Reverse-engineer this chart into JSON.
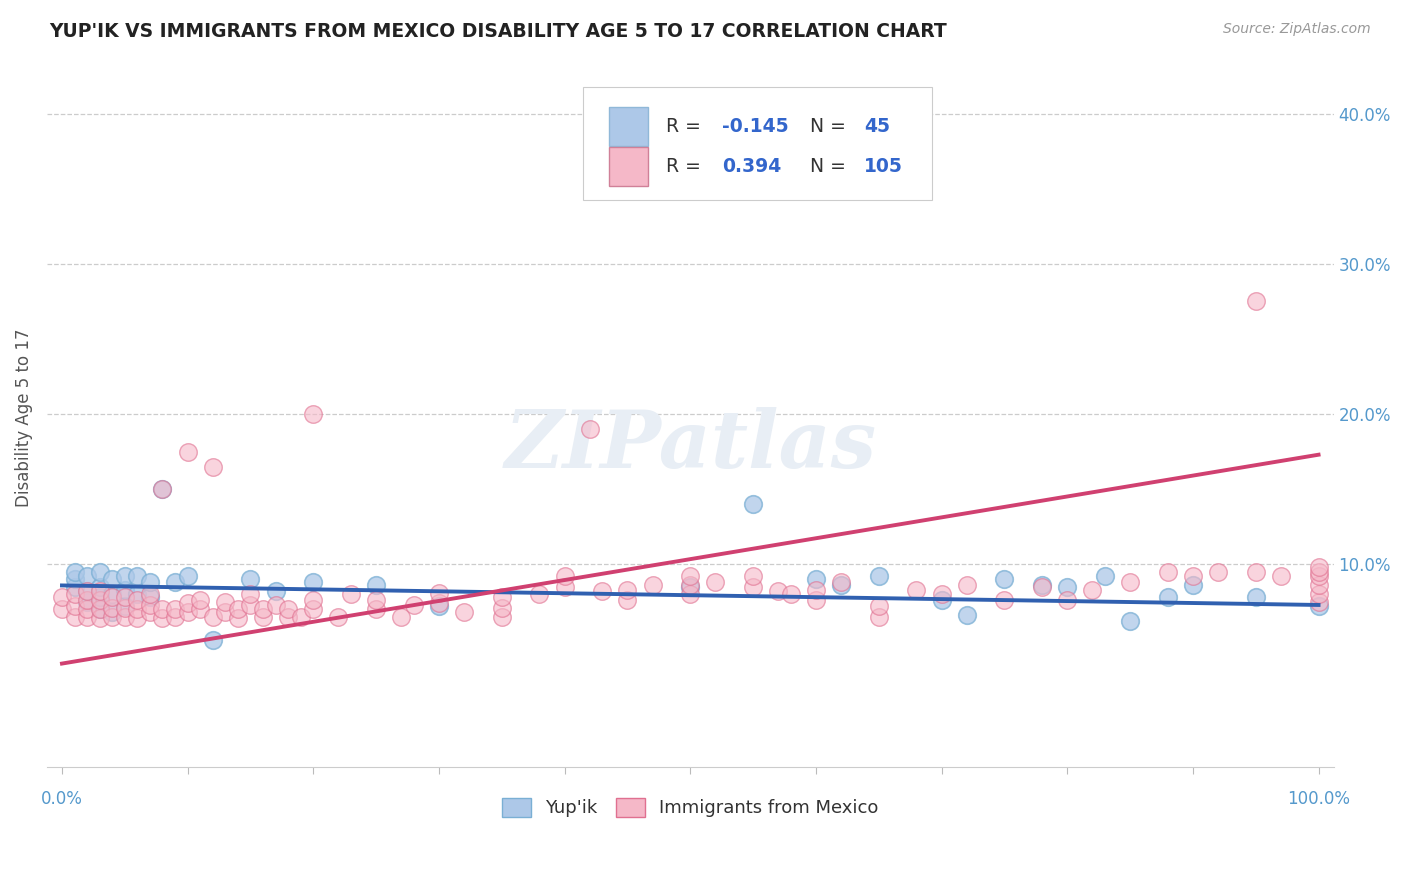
{
  "title": "YUP'IK VS IMMIGRANTS FROM MEXICO DISABILITY AGE 5 TO 17 CORRELATION CHART",
  "source": "Source: ZipAtlas.com",
  "ylabel": "Disability Age 5 to 17",
  "legend_blue_label": "Yup'ik",
  "legend_pink_label": "Immigrants from Mexico",
  "blue_R": -0.145,
  "blue_N": 45,
  "pink_R": 0.394,
  "pink_N": 105,
  "watermark": "ZIPatlas",
  "background_color": "#ffffff",
  "blue_scatter_color": "#adc8e8",
  "blue_scatter_edge": "#7aafd4",
  "blue_line_color": "#3060b0",
  "pink_scatter_color": "#f5b8c8",
  "pink_scatter_edge": "#e07090",
  "pink_line_color": "#d04070",
  "blue_points_x": [
    0.01,
    0.01,
    0.01,
    0.02,
    0.02,
    0.02,
    0.03,
    0.03,
    0.03,
    0.03,
    0.04,
    0.04,
    0.04,
    0.05,
    0.05,
    0.05,
    0.06,
    0.06,
    0.07,
    0.07,
    0.08,
    0.09,
    0.1,
    0.12,
    0.15,
    0.17,
    0.2,
    0.25,
    0.3,
    0.5,
    0.55,
    0.6,
    0.62,
    0.65,
    0.7,
    0.72,
    0.75,
    0.78,
    0.8,
    0.83,
    0.85,
    0.88,
    0.9,
    0.95,
    1.0
  ],
  "blue_points_y": [
    0.085,
    0.09,
    0.095,
    0.075,
    0.082,
    0.092,
    0.07,
    0.078,
    0.085,
    0.095,
    0.068,
    0.08,
    0.09,
    0.072,
    0.083,
    0.092,
    0.08,
    0.092,
    0.078,
    0.088,
    0.15,
    0.088,
    0.092,
    0.05,
    0.09,
    0.082,
    0.088,
    0.086,
    0.072,
    0.085,
    0.14,
    0.09,
    0.086,
    0.092,
    0.076,
    0.066,
    0.09,
    0.086,
    0.085,
    0.092,
    0.062,
    0.078,
    0.086,
    0.078,
    0.072
  ],
  "pink_points_x": [
    0.0,
    0.0,
    0.01,
    0.01,
    0.01,
    0.02,
    0.02,
    0.02,
    0.02,
    0.03,
    0.03,
    0.03,
    0.03,
    0.04,
    0.04,
    0.04,
    0.05,
    0.05,
    0.05,
    0.06,
    0.06,
    0.06,
    0.07,
    0.07,
    0.07,
    0.08,
    0.08,
    0.08,
    0.09,
    0.09,
    0.1,
    0.1,
    0.1,
    0.11,
    0.11,
    0.12,
    0.12,
    0.13,
    0.13,
    0.14,
    0.14,
    0.15,
    0.15,
    0.16,
    0.16,
    0.17,
    0.18,
    0.18,
    0.19,
    0.2,
    0.2,
    0.2,
    0.22,
    0.23,
    0.25,
    0.25,
    0.27,
    0.28,
    0.3,
    0.3,
    0.32,
    0.35,
    0.35,
    0.35,
    0.38,
    0.4,
    0.4,
    0.42,
    0.43,
    0.45,
    0.45,
    0.47,
    0.5,
    0.5,
    0.5,
    0.52,
    0.55,
    0.55,
    0.57,
    0.58,
    0.6,
    0.6,
    0.62,
    0.65,
    0.65,
    0.68,
    0.7,
    0.72,
    0.75,
    0.78,
    0.8,
    0.82,
    0.85,
    0.88,
    0.9,
    0.92,
    0.95,
    0.95,
    0.97,
    1.0,
    1.0,
    1.0,
    1.0,
    1.0,
    1.0
  ],
  "pink_points_y": [
    0.07,
    0.078,
    0.065,
    0.072,
    0.08,
    0.065,
    0.07,
    0.076,
    0.082,
    0.064,
    0.07,
    0.076,
    0.082,
    0.065,
    0.071,
    0.078,
    0.065,
    0.071,
    0.078,
    0.064,
    0.07,
    0.076,
    0.068,
    0.073,
    0.08,
    0.064,
    0.07,
    0.15,
    0.065,
    0.07,
    0.068,
    0.074,
    0.175,
    0.07,
    0.076,
    0.065,
    0.165,
    0.068,
    0.075,
    0.064,
    0.07,
    0.073,
    0.08,
    0.065,
    0.07,
    0.073,
    0.065,
    0.07,
    0.065,
    0.07,
    0.076,
    0.2,
    0.065,
    0.08,
    0.07,
    0.076,
    0.065,
    0.073,
    0.074,
    0.081,
    0.068,
    0.065,
    0.071,
    0.078,
    0.08,
    0.085,
    0.092,
    0.19,
    0.082,
    0.076,
    0.083,
    0.086,
    0.08,
    0.086,
    0.092,
    0.088,
    0.085,
    0.092,
    0.082,
    0.08,
    0.076,
    0.083,
    0.088,
    0.065,
    0.072,
    0.083,
    0.08,
    0.086,
    0.076,
    0.085,
    0.076,
    0.083,
    0.088,
    0.095,
    0.092,
    0.095,
    0.275,
    0.095,
    0.092,
    0.075,
    0.08,
    0.086,
    0.092,
    0.095,
    0.098
  ],
  "blue_line_x0": 0.0,
  "blue_line_x1": 1.0,
  "blue_line_y0": 0.086,
  "blue_line_y1": 0.073,
  "pink_line_x0": 0.0,
  "pink_line_x1": 1.0,
  "pink_line_y0": 0.034,
  "pink_line_y1": 0.173,
  "ylim_min": -0.035,
  "ylim_max": 0.43,
  "xlim_min": -0.012,
  "xlim_max": 1.012
}
